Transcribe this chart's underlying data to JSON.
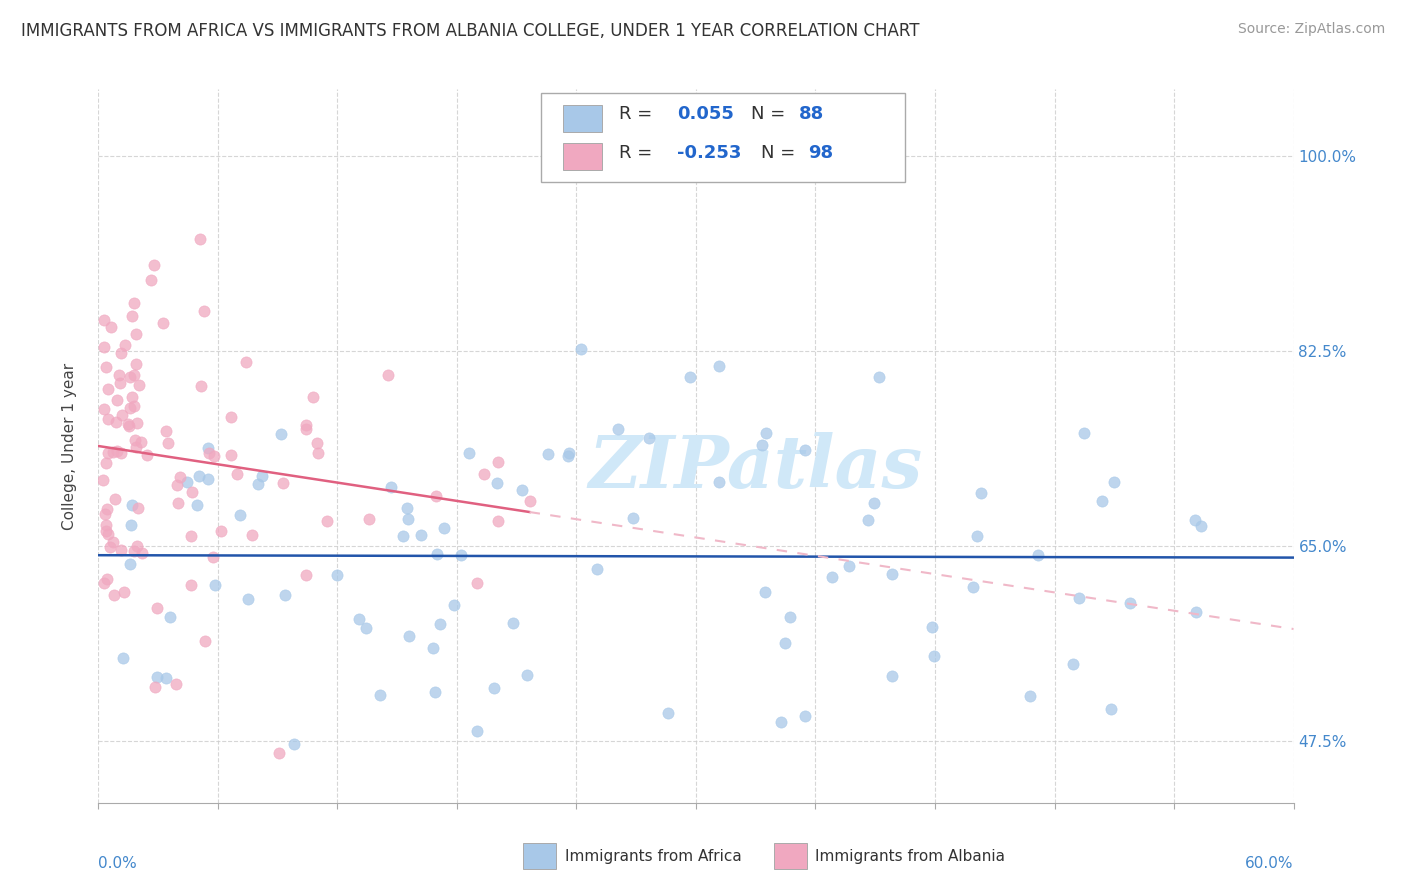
{
  "title": "IMMIGRANTS FROM AFRICA VS IMMIGRANTS FROM ALBANIA COLLEGE, UNDER 1 YEAR CORRELATION CHART",
  "source": "Source: ZipAtlas.com",
  "ylabel": "College, Under 1 year",
  "yticks": [
    "47.5%",
    "65.0%",
    "82.5%",
    "100.0%"
  ],
  "ytick_values": [
    0.475,
    0.65,
    0.825,
    1.0
  ],
  "xlim": [
    0.0,
    0.6
  ],
  "ylim": [
    0.42,
    1.06
  ],
  "color_africa": "#a8c8e8",
  "color_albania": "#f0a8c0",
  "trendline_africa_color": "#2255aa",
  "trendline_albania_color": "#e06080",
  "trendline_albania_dash_color": "#f0b8c8",
  "watermark": "ZIPatlas",
  "watermark_color": "#d0e8f8",
  "legend_box_color": "#aaaaaa",
  "bottom_legend_africa": "Immigrants from Africa",
  "bottom_legend_albania": "Immigrants from Albania"
}
